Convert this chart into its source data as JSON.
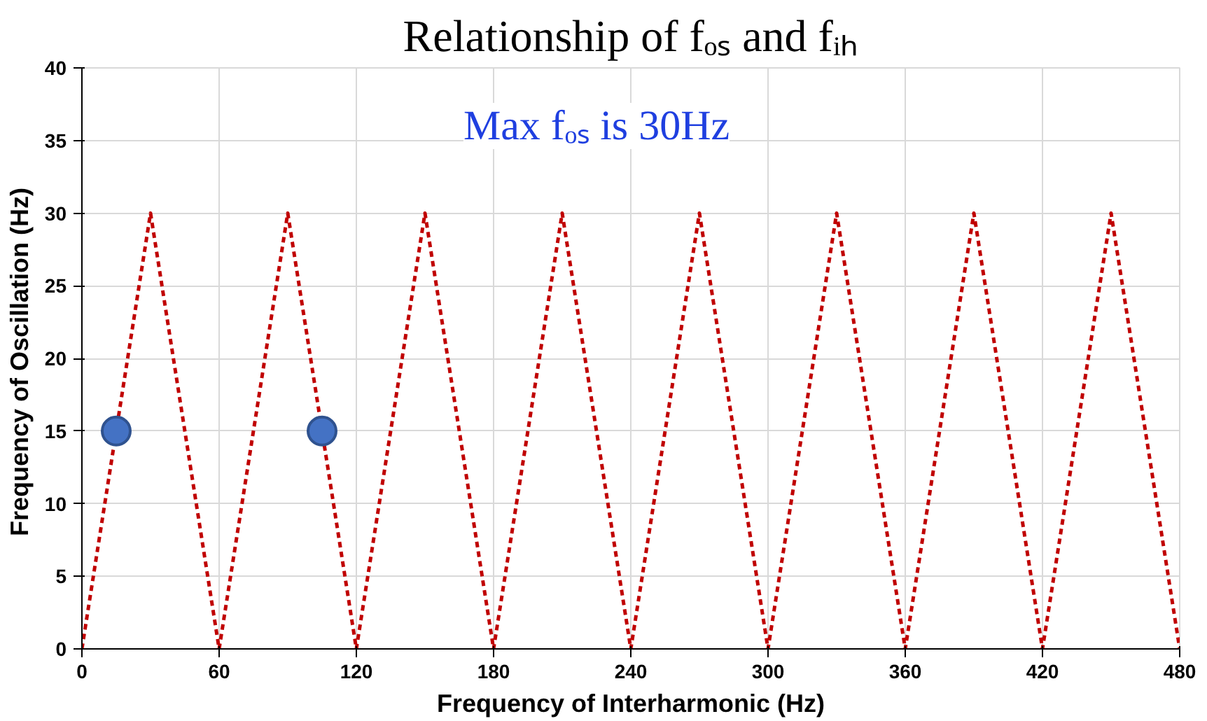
{
  "chart_data": {
    "type": "line",
    "title": "Relationship of fₒₛ and fᵢₕ",
    "xlabel": "Frequency of Interharmonic (Hz)",
    "ylabel": "Frequency of  Oscillation (Hz)",
    "annotations": [
      "Max fₒₛ is 30Hz"
    ],
    "series": [
      {
        "color": "#c00000",
        "line_style": "dotted",
        "marker": "none",
        "x": [
          0,
          30,
          60,
          90,
          120,
          150,
          180,
          210,
          240,
          270,
          300,
          330,
          360,
          390,
          420,
          450,
          480
        ],
        "values": [
          0,
          30,
          0,
          30,
          0,
          30,
          0,
          30,
          0,
          30,
          0,
          30,
          0,
          30,
          0,
          30,
          0
        ]
      },
      {
        "type": "scatter",
        "color": "#4472c4",
        "marker": "circle",
        "x": [
          15,
          105
        ],
        "values": [
          15,
          15
        ]
      }
    ],
    "xlim": [
      0,
      480
    ],
    "xticks": [
      0,
      60,
      120,
      180,
      240,
      300,
      360,
      420,
      480
    ],
    "ylim": [
      0,
      40
    ],
    "yticks": [
      0,
      5,
      10,
      15,
      20,
      25,
      30,
      35,
      40
    ],
    "grid": true
  }
}
